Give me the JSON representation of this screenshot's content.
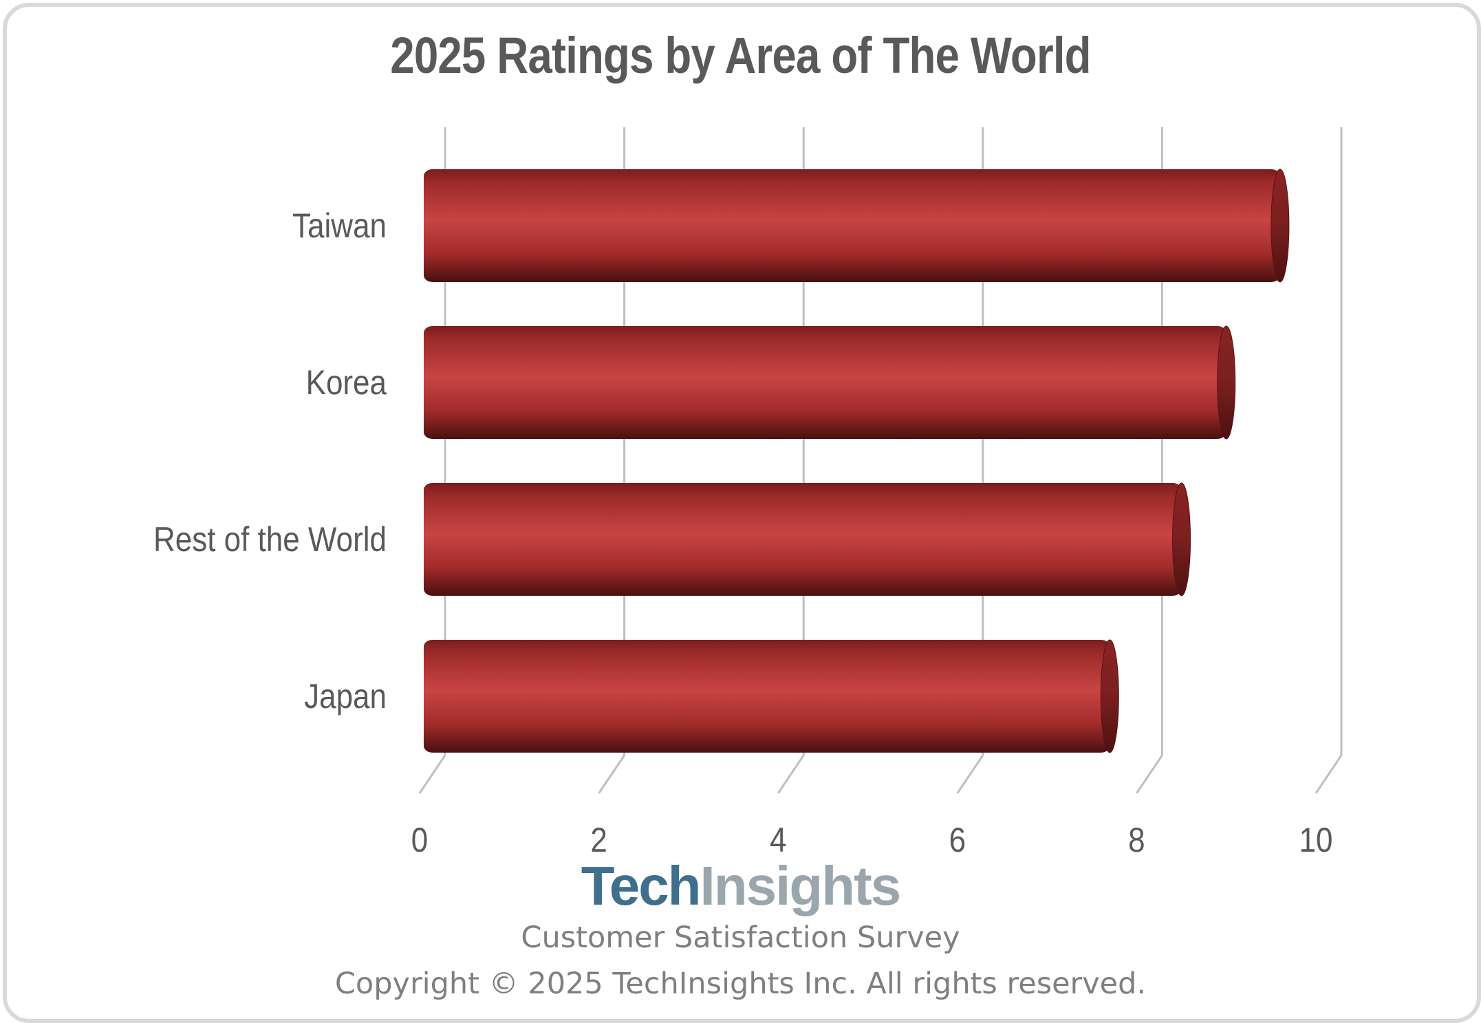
{
  "colors": {
    "bar": "#b83232",
    "bar_dark": "#5e1414",
    "grid": "#bfbfbf",
    "text": "#595959",
    "logo_tech": "#3e6f8c",
    "logo_insights": "#9aa6ae"
  },
  "chart_data": {
    "type": "bar",
    "orientation": "horizontal",
    "style": "3d-cylinder",
    "title": "2025 Ratings by Area of The World",
    "categories": [
      "Taiwan",
      "Korea",
      "Rest of the World",
      "Japan"
    ],
    "values": [
      9.6,
      9.0,
      8.5,
      7.7
    ],
    "xlim": [
      0,
      10
    ],
    "xticks": [
      "0",
      "2",
      "4",
      "6",
      "8",
      "10"
    ],
    "grid": true,
    "legend": "none"
  },
  "footer": {
    "logo_tech": "Tech",
    "logo_insights": "Insights",
    "survey": "Customer Satisfaction Survey",
    "copyright": "Copyright © 2025 TechInsights Inc.  All rights reserved."
  }
}
